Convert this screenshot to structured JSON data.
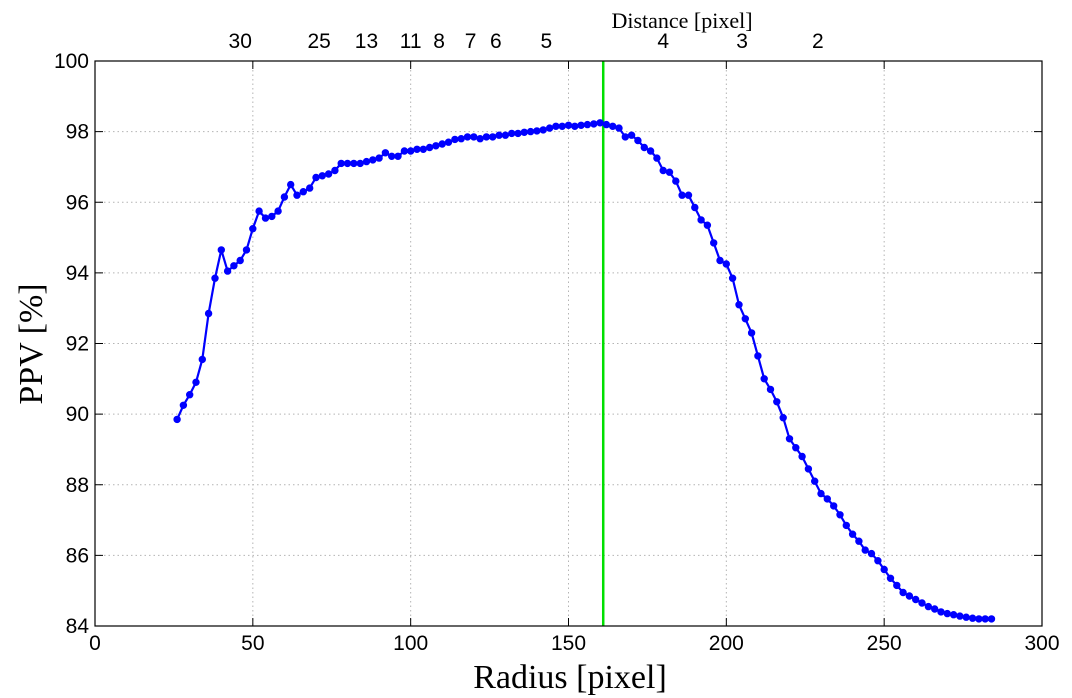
{
  "chart_data": {
    "type": "line",
    "title": "",
    "xlabel": "Radius [pixel]",
    "ylabel": "PPV [%]",
    "top_axis_label": "Distance [pixel]",
    "xlim": [
      0,
      300
    ],
    "ylim": [
      84,
      100
    ],
    "x_ticks": [
      0,
      50,
      100,
      150,
      200,
      250,
      300
    ],
    "y_ticks": [
      84,
      86,
      88,
      90,
      92,
      94,
      96,
      98,
      100
    ],
    "top_ticks": [
      {
        "label": "30",
        "radius": 46
      },
      {
        "label": "25",
        "radius": 71
      },
      {
        "label": "13",
        "radius": 86
      },
      {
        "label": "11",
        "radius": 100
      },
      {
        "label": "8",
        "radius": 109
      },
      {
        "label": "7",
        "radius": 119
      },
      {
        "label": "6",
        "radius": 127
      },
      {
        "label": "5",
        "radius": 143
      },
      {
        "label": "4",
        "radius": 180
      },
      {
        "label": "3",
        "radius": 205
      },
      {
        "label": "2",
        "radius": 229
      }
    ],
    "grid": true,
    "vertical_line": {
      "x": 161,
      "color": "#00e000"
    },
    "series": [
      {
        "color": "#0000ff",
        "marker": "circle",
        "x": [
          26,
          28,
          30,
          32,
          34,
          36,
          38,
          40,
          42,
          44,
          46,
          48,
          50,
          52,
          54,
          56,
          58,
          60,
          62,
          64,
          66,
          68,
          70,
          72,
          74,
          76,
          78,
          80,
          82,
          84,
          86,
          88,
          90,
          92,
          94,
          96,
          98,
          100,
          102,
          104,
          106,
          108,
          110,
          112,
          114,
          116,
          118,
          120,
          122,
          124,
          126,
          128,
          130,
          132,
          134,
          136,
          138,
          140,
          142,
          144,
          146,
          148,
          150,
          152,
          154,
          156,
          158,
          160,
          162,
          164,
          166,
          168,
          170,
          172,
          174,
          176,
          178,
          180,
          182,
          184,
          186,
          188,
          190,
          192,
          194,
          196,
          198,
          200,
          202,
          204,
          206,
          208,
          210,
          212,
          214,
          216,
          218,
          220,
          222,
          224,
          226,
          228,
          230,
          232,
          234,
          236,
          238,
          240,
          242,
          244,
          246,
          248,
          250,
          252,
          254,
          256,
          258,
          260,
          262,
          264,
          266,
          268,
          270,
          272,
          274,
          276,
          278,
          280,
          282,
          284
        ],
        "y": [
          89.85,
          90.25,
          90.55,
          90.9,
          91.55,
          92.85,
          93.85,
          94.65,
          94.05,
          94.2,
          94.35,
          94.65,
          95.25,
          95.75,
          95.55,
          95.6,
          95.75,
          96.15,
          96.5,
          96.2,
          96.3,
          96.4,
          96.7,
          96.75,
          96.8,
          96.9,
          97.1,
          97.1,
          97.1,
          97.1,
          97.15,
          97.2,
          97.25,
          97.4,
          97.3,
          97.3,
          97.45,
          97.45,
          97.5,
          97.5,
          97.55,
          97.6,
          97.65,
          97.7,
          97.78,
          97.8,
          97.85,
          97.85,
          97.8,
          97.85,
          97.85,
          97.9,
          97.9,
          97.95,
          97.95,
          97.98,
          98.0,
          98.02,
          98.05,
          98.1,
          98.15,
          98.15,
          98.18,
          98.15,
          98.18,
          98.2,
          98.22,
          98.25,
          98.2,
          98.15,
          98.1,
          97.85,
          97.9,
          97.75,
          97.55,
          97.45,
          97.25,
          96.9,
          96.85,
          96.6,
          96.2,
          96.2,
          95.85,
          95.5,
          95.35,
          94.85,
          94.35,
          94.25,
          93.85,
          93.1,
          92.7,
          92.3,
          91.65,
          91.0,
          90.7,
          90.35,
          89.9,
          89.3,
          89.05,
          88.8,
          88.45,
          88.1,
          87.75,
          87.6,
          87.4,
          87.15,
          86.85,
          86.6,
          86.4,
          86.15,
          86.05,
          85.85,
          85.6,
          85.35,
          85.15,
          84.95,
          84.85,
          84.75,
          84.65,
          84.55,
          84.48,
          84.4,
          84.35,
          84.32,
          84.28,
          84.25,
          84.22,
          84.2,
          84.2,
          84.2
        ]
      }
    ]
  }
}
